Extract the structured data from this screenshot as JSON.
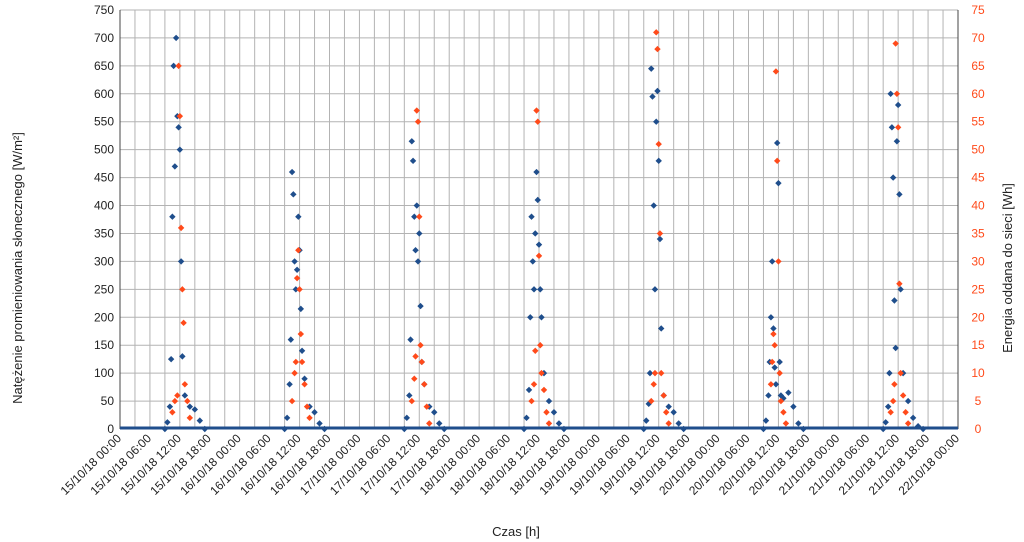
{
  "chart_data": {
    "type": "scatter",
    "xlabel": "Czas [h]",
    "ylabel_left": "Natężenie promieniowania słonecznego [W/m²]",
    "ylabel_right": "Energia oddana do sieci [Wh]",
    "y_left_lim": [
      0,
      750
    ],
    "y_right_lim": [
      0,
      75
    ],
    "y_left_ticks": [
      0,
      50,
      100,
      150,
      200,
      250,
      300,
      350,
      400,
      450,
      500,
      550,
      600,
      650,
      700,
      750
    ],
    "y_right_ticks": [
      0,
      5,
      10,
      15,
      20,
      25,
      30,
      35,
      40,
      45,
      50,
      55,
      60,
      65,
      70,
      75
    ],
    "x_range": [
      "2018-10-15 00:00",
      "2018-10-22 00:00"
    ],
    "x_tick_labels": [
      "15/10/18 00:00",
      "15/10/18 06:00",
      "15/10/18 12:00",
      "15/10/18 18:00",
      "16/10/18 00:00",
      "16/10/18 06:00",
      "16/10/18 12:00",
      "16/10/18 18:00",
      "17/10/18 00:00",
      "17/10/18 06:00",
      "17/10/18 12:00",
      "17/10/18 18:00",
      "18/10/18 00:00",
      "18/10/18 06:00",
      "18/10/18 12:00",
      "18/10/18 18:00",
      "19/10/18 00:00",
      "19/10/18 06:00",
      "19/10/18 12:00",
      "19/10/18 18:00",
      "20/10/18 00:00",
      "20/10/18 06:00",
      "20/10/18 12:00",
      "20/10/18 18:00",
      "21/10/18 00:00",
      "21/10/18 06:00",
      "21/10/18 12:00",
      "21/10/18 18:00",
      "22/10/18 00:00"
    ],
    "grid": true,
    "series": [
      {
        "axis": "left",
        "color": "#1f4e8c",
        "marker": "diamond",
        "points": [
          [
            "2018-10-15 09:00",
            0
          ],
          [
            "2018-10-15 09:30",
            12
          ],
          [
            "2018-10-15 10:00",
            40
          ],
          [
            "2018-10-15 10:15",
            125
          ],
          [
            "2018-10-15 10:30",
            380
          ],
          [
            "2018-10-15 10:45",
            650
          ],
          [
            "2018-10-15 11:00",
            470
          ],
          [
            "2018-10-15 11:15",
            700
          ],
          [
            "2018-10-15 11:30",
            560
          ],
          [
            "2018-10-15 11:45",
            540
          ],
          [
            "2018-10-15 12:00",
            500
          ],
          [
            "2018-10-15 12:15",
            300
          ],
          [
            "2018-10-15 12:30",
            130
          ],
          [
            "2018-10-15 13:00",
            60
          ],
          [
            "2018-10-15 14:00",
            40
          ],
          [
            "2018-10-15 15:00",
            35
          ],
          [
            "2018-10-15 16:00",
            15
          ],
          [
            "2018-10-15 17:00",
            0
          ],
          [
            "2018-10-16 09:00",
            0
          ],
          [
            "2018-10-16 09:30",
            20
          ],
          [
            "2018-10-16 10:00",
            80
          ],
          [
            "2018-10-16 10:15",
            160
          ],
          [
            "2018-10-16 10:30",
            460
          ],
          [
            "2018-10-16 10:45",
            420
          ],
          [
            "2018-10-16 11:00",
            300
          ],
          [
            "2018-10-16 11:15",
            250
          ],
          [
            "2018-10-16 11:30",
            285
          ],
          [
            "2018-10-16 11:45",
            380
          ],
          [
            "2018-10-16 12:00",
            320
          ],
          [
            "2018-10-16 12:15",
            215
          ],
          [
            "2018-10-16 12:30",
            140
          ],
          [
            "2018-10-16 13:00",
            90
          ],
          [
            "2018-10-16 14:00",
            40
          ],
          [
            "2018-10-16 15:00",
            30
          ],
          [
            "2018-10-16 16:00",
            10
          ],
          [
            "2018-10-16 17:00",
            0
          ],
          [
            "2018-10-17 09:00",
            0
          ],
          [
            "2018-10-17 09:30",
            20
          ],
          [
            "2018-10-17 10:00",
            60
          ],
          [
            "2018-10-17 10:15",
            160
          ],
          [
            "2018-10-17 10:30",
            515
          ],
          [
            "2018-10-17 10:45",
            480
          ],
          [
            "2018-10-17 11:00",
            380
          ],
          [
            "2018-10-17 11:15",
            320
          ],
          [
            "2018-10-17 11:30",
            400
          ],
          [
            "2018-10-17 11:45",
            300
          ],
          [
            "2018-10-17 12:00",
            350
          ],
          [
            "2018-10-17 12:15",
            220
          ],
          [
            "2018-10-17 12:30",
            120
          ],
          [
            "2018-10-17 13:00",
            80
          ],
          [
            "2018-10-17 14:00",
            40
          ],
          [
            "2018-10-17 15:00",
            30
          ],
          [
            "2018-10-17 16:00",
            10
          ],
          [
            "2018-10-17 17:00",
            0
          ],
          [
            "2018-10-18 09:00",
            0
          ],
          [
            "2018-10-18 09:30",
            20
          ],
          [
            "2018-10-18 10:00",
            70
          ],
          [
            "2018-10-18 10:15",
            200
          ],
          [
            "2018-10-18 10:30",
            380
          ],
          [
            "2018-10-18 10:45",
            300
          ],
          [
            "2018-10-18 11:00",
            250
          ],
          [
            "2018-10-18 11:15",
            350
          ],
          [
            "2018-10-18 11:30",
            460
          ],
          [
            "2018-10-18 11:45",
            410
          ],
          [
            "2018-10-18 12:00",
            330
          ],
          [
            "2018-10-18 12:15",
            250
          ],
          [
            "2018-10-18 12:30",
            200
          ],
          [
            "2018-10-18 13:00",
            100
          ],
          [
            "2018-10-18 14:00",
            50
          ],
          [
            "2018-10-18 15:00",
            30
          ],
          [
            "2018-10-18 16:00",
            10
          ],
          [
            "2018-10-18 17:00",
            0
          ],
          [
            "2018-10-19 09:00",
            0
          ],
          [
            "2018-10-19 09:30",
            15
          ],
          [
            "2018-10-19 10:00",
            45
          ],
          [
            "2018-10-19 10:15",
            100
          ],
          [
            "2018-10-19 10:30",
            645
          ],
          [
            "2018-10-19 10:45",
            595
          ],
          [
            "2018-10-19 11:00",
            400
          ],
          [
            "2018-10-19 11:15",
            250
          ],
          [
            "2018-10-19 11:30",
            550
          ],
          [
            "2018-10-19 11:45",
            605
          ],
          [
            "2018-10-19 12:00",
            480
          ],
          [
            "2018-10-19 12:15",
            340
          ],
          [
            "2018-10-19 12:30",
            180
          ],
          [
            "2018-10-19 13:00",
            60
          ],
          [
            "2018-10-19 14:00",
            40
          ],
          [
            "2018-10-19 15:00",
            30
          ],
          [
            "2018-10-19 16:00",
            10
          ],
          [
            "2018-10-19 17:00",
            0
          ],
          [
            "2018-10-20 09:00",
            0
          ],
          [
            "2018-10-20 09:30",
            15
          ],
          [
            "2018-10-20 10:00",
            60
          ],
          [
            "2018-10-20 10:15",
            120
          ],
          [
            "2018-10-20 10:30",
            200
          ],
          [
            "2018-10-20 10:45",
            300
          ],
          [
            "2018-10-20 11:00",
            180
          ],
          [
            "2018-10-20 11:15",
            110
          ],
          [
            "2018-10-20 11:30",
            80
          ],
          [
            "2018-10-20 11:45",
            512
          ],
          [
            "2018-10-20 12:00",
            440
          ],
          [
            "2018-10-20 12:15",
            120
          ],
          [
            "2018-10-20 12:30",
            60
          ],
          [
            "2018-10-20 13:00",
            55
          ],
          [
            "2018-10-20 14:00",
            65
          ],
          [
            "2018-10-20 15:00",
            40
          ],
          [
            "2018-10-20 16:00",
            10
          ],
          [
            "2018-10-20 17:00",
            0
          ],
          [
            "2018-10-21 09:00",
            0
          ],
          [
            "2018-10-21 09:30",
            12
          ],
          [
            "2018-10-21 10:00",
            40
          ],
          [
            "2018-10-21 10:15",
            100
          ],
          [
            "2018-10-21 10:30",
            600
          ],
          [
            "2018-10-21 10:45",
            540
          ],
          [
            "2018-10-21 11:00",
            450
          ],
          [
            "2018-10-21 11:15",
            230
          ],
          [
            "2018-10-21 11:30",
            145
          ],
          [
            "2018-10-21 11:45",
            515
          ],
          [
            "2018-10-21 12:00",
            580
          ],
          [
            "2018-10-21 12:15",
            420
          ],
          [
            "2018-10-21 12:30",
            250
          ],
          [
            "2018-10-21 13:00",
            100
          ],
          [
            "2018-10-21 14:00",
            50
          ],
          [
            "2018-10-21 15:00",
            20
          ],
          [
            "2018-10-21 16:00",
            5
          ],
          [
            "2018-10-21 17:00",
            0
          ]
        ]
      },
      {
        "axis": "right",
        "color": "#ff4a1a",
        "marker": "diamond",
        "points": [
          [
            "2018-10-15 10:30",
            3
          ],
          [
            "2018-10-15 11:00",
            5
          ],
          [
            "2018-10-15 11:30",
            6
          ],
          [
            "2018-10-15 11:45",
            65
          ],
          [
            "2018-10-15 12:00",
            56
          ],
          [
            "2018-10-15 12:15",
            36
          ],
          [
            "2018-10-15 12:30",
            25
          ],
          [
            "2018-10-15 12:45",
            19
          ],
          [
            "2018-10-15 13:00",
            8
          ],
          [
            "2018-10-15 13:30",
            5
          ],
          [
            "2018-10-15 14:00",
            2
          ],
          [
            "2018-10-16 10:30",
            5
          ],
          [
            "2018-10-16 11:00",
            10
          ],
          [
            "2018-10-16 11:15",
            12
          ],
          [
            "2018-10-16 11:30",
            27
          ],
          [
            "2018-10-16 11:45",
            32
          ],
          [
            "2018-10-16 12:00",
            25
          ],
          [
            "2018-10-16 12:15",
            17
          ],
          [
            "2018-10-16 12:30",
            12
          ],
          [
            "2018-10-16 13:00",
            8
          ],
          [
            "2018-10-16 13:30",
            4
          ],
          [
            "2018-10-16 14:00",
            2
          ],
          [
            "2018-10-17 10:30",
            5
          ],
          [
            "2018-10-17 11:00",
            9
          ],
          [
            "2018-10-17 11:15",
            13
          ],
          [
            "2018-10-17 11:30",
            57
          ],
          [
            "2018-10-17 11:45",
            55
          ],
          [
            "2018-10-17 12:00",
            38
          ],
          [
            "2018-10-17 12:15",
            15
          ],
          [
            "2018-10-17 12:30",
            12
          ],
          [
            "2018-10-17 13:00",
            8
          ],
          [
            "2018-10-17 13:30",
            4
          ],
          [
            "2018-10-17 14:00",
            1
          ],
          [
            "2018-10-18 10:30",
            5
          ],
          [
            "2018-10-18 11:00",
            8
          ],
          [
            "2018-10-18 11:15",
            14
          ],
          [
            "2018-10-18 11:30",
            57
          ],
          [
            "2018-10-18 11:45",
            55
          ],
          [
            "2018-10-18 12:00",
            31
          ],
          [
            "2018-10-18 12:15",
            15
          ],
          [
            "2018-10-18 12:30",
            10
          ],
          [
            "2018-10-18 13:00",
            7
          ],
          [
            "2018-10-18 13:30",
            3
          ],
          [
            "2018-10-18 14:00",
            1
          ],
          [
            "2018-10-19 10:30",
            5
          ],
          [
            "2018-10-19 11:00",
            8
          ],
          [
            "2018-10-19 11:15",
            10
          ],
          [
            "2018-10-19 11:30",
            71
          ],
          [
            "2018-10-19 11:45",
            68
          ],
          [
            "2018-10-19 12:00",
            51
          ],
          [
            "2018-10-19 12:15",
            35
          ],
          [
            "2018-10-19 12:30",
            10
          ],
          [
            "2018-10-19 13:00",
            6
          ],
          [
            "2018-10-19 13:30",
            3
          ],
          [
            "2018-10-19 14:00",
            1
          ],
          [
            "2018-10-20 10:30",
            8
          ],
          [
            "2018-10-20 10:45",
            12
          ],
          [
            "2018-10-20 11:00",
            17
          ],
          [
            "2018-10-20 11:15",
            15
          ],
          [
            "2018-10-20 11:30",
            64
          ],
          [
            "2018-10-20 11:45",
            48
          ],
          [
            "2018-10-20 12:00",
            30
          ],
          [
            "2018-10-20 12:15",
            10
          ],
          [
            "2018-10-20 12:30",
            5
          ],
          [
            "2018-10-20 13:00",
            3
          ],
          [
            "2018-10-20 13:30",
            1
          ],
          [
            "2018-10-21 10:30",
            3
          ],
          [
            "2018-10-21 11:00",
            5
          ],
          [
            "2018-10-21 11:15",
            8
          ],
          [
            "2018-10-21 11:30",
            69
          ],
          [
            "2018-10-21 11:45",
            60
          ],
          [
            "2018-10-21 12:00",
            54
          ],
          [
            "2018-10-21 12:15",
            26
          ],
          [
            "2018-10-21 12:30",
            10
          ],
          [
            "2018-10-21 13:00",
            6
          ],
          [
            "2018-10-21 13:30",
            3
          ],
          [
            "2018-10-21 14:00",
            1
          ]
        ]
      }
    ]
  }
}
